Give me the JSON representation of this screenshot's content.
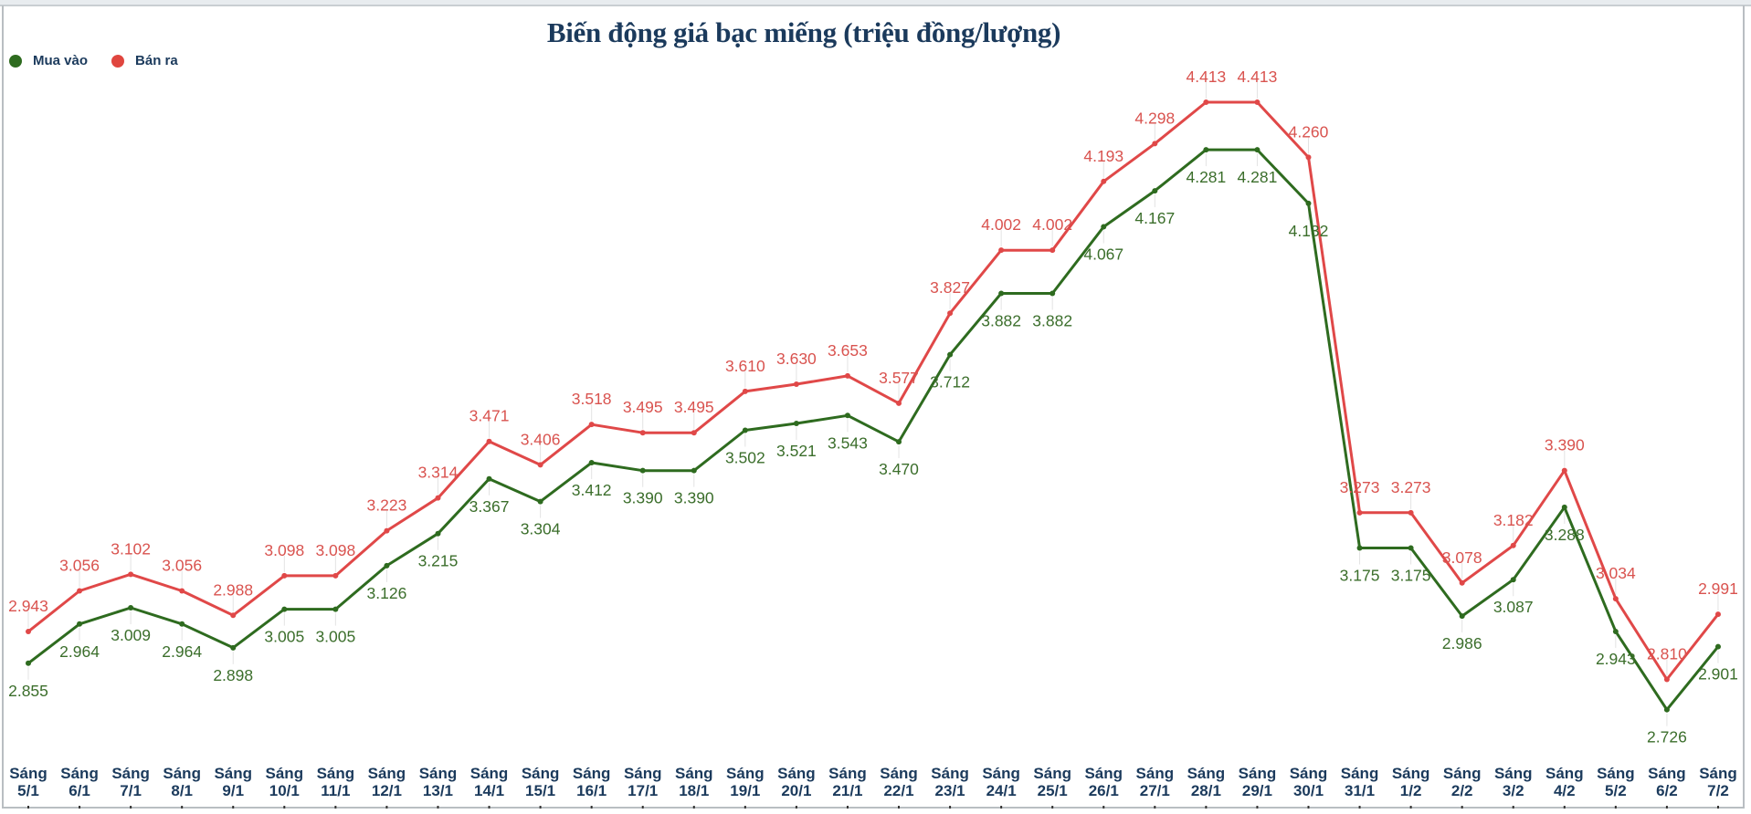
{
  "title": "Biến động giá bạc miếng (triệu đồng/lượng)",
  "legend": [
    {
      "label": "Mua vào",
      "color": "#2e6b1f",
      "icon": "green-dot"
    },
    {
      "label": "Bán ra",
      "color": "#e0463f",
      "icon": "red-dot"
    }
  ],
  "colors": {
    "title": "#1b3a5c",
    "buy_line": "#2e6b1f",
    "buy_text": "#3b6e2b",
    "sell_line": "#e04848",
    "sell_text": "#d9534f",
    "axis_text": "#1b3a5c"
  },
  "chart_data": {
    "type": "line",
    "title": "Biến động giá bạc miếng (triệu đồng/lượng)",
    "xlabel": "",
    "ylabel": "",
    "grid": false,
    "legend_position": "top-left",
    "categories": [
      "Sáng 5/1",
      "Sáng 6/1",
      "Sáng 7/1",
      "Sáng 8/1",
      "Sáng 9/1",
      "Sáng 10/1",
      "Sáng 11/1",
      "Sáng 12/1",
      "Sáng 13/1",
      "Sáng 14/1",
      "Sáng 15/1",
      "Sáng 16/1",
      "Sáng 17/1",
      "Sáng 18/1",
      "Sáng 19/1",
      "Sáng 20/1",
      "Sáng 21/1",
      "Sáng 22/1",
      "Sáng 23/1",
      "Sáng 24/1",
      "Sáng 25/1",
      "Sáng 26/1",
      "Sáng 27/1",
      "Sáng 28/1",
      "Sáng 29/1",
      "Sáng 30/1",
      "Sáng 31/1",
      "Sáng 1/2",
      "Sáng 2/2",
      "Sáng 3/2",
      "Sáng 4/2",
      "Sáng 5/2",
      "Sáng 6/2",
      "Sáng 7/2"
    ],
    "series": [
      {
        "name": "Mua vào",
        "values": [
          2.855,
          2.964,
          3.009,
          2.964,
          2.898,
          3.005,
          3.005,
          3.126,
          3.215,
          3.367,
          3.304,
          3.412,
          3.39,
          3.39,
          3.502,
          3.521,
          3.543,
          3.47,
          3.712,
          3.882,
          3.882,
          4.067,
          4.167,
          4.281,
          4.281,
          4.132,
          3.175,
          3.175,
          2.986,
          3.087,
          3.288,
          2.943,
          2.726,
          2.901
        ]
      },
      {
        "name": "Bán ra",
        "values": [
          2.943,
          3.056,
          3.102,
          3.056,
          2.988,
          3.098,
          3.098,
          3.223,
          3.314,
          3.471,
          3.406,
          3.518,
          3.495,
          3.495,
          3.61,
          3.63,
          3.653,
          3.577,
          3.827,
          4.002,
          4.002,
          4.193,
          4.298,
          4.413,
          4.413,
          4.26,
          3.273,
          3.273,
          3.078,
          3.182,
          3.39,
          3.034,
          2.81,
          2.991
        ]
      }
    ],
    "value_labels": [
      {
        "series": "Mua vào",
        "labels": [
          "2.855",
          "2.964",
          "3.009",
          "2.964",
          "2.898",
          "3.005",
          "3.005",
          "3.126",
          "3.215",
          "3.367",
          "3.304",
          "3.412",
          "3.390",
          "3.390",
          "3.502",
          "3.521",
          "3.543",
          "3.470",
          "3.712",
          "3.882",
          "3.882",
          "4.067",
          "4.167",
          "4.281",
          "4.281",
          "4.132",
          "3.175",
          "3.175",
          "2.986",
          "3.087",
          "3.288",
          "2.943",
          "2.726",
          "2.901"
        ]
      },
      {
        "series": "Bán ra",
        "labels": [
          "2.943",
          "3.056",
          "3.102",
          "3.056",
          "2.988",
          "3.098",
          "3.098",
          "3.223",
          "3.314",
          "3.471",
          "3.406",
          "3.518",
          "3.495",
          "3.495",
          "3.610",
          "3.630",
          "3.653",
          "3.577",
          "3.827",
          "4.002",
          "4.002",
          "4.193",
          "4.298",
          "4.413",
          "4.413",
          "4.260",
          "3.273",
          "3.273",
          "3.078",
          "3.182",
          "3.390",
          "3.034",
          "2.810",
          "2.991"
        ]
      }
    ]
  }
}
